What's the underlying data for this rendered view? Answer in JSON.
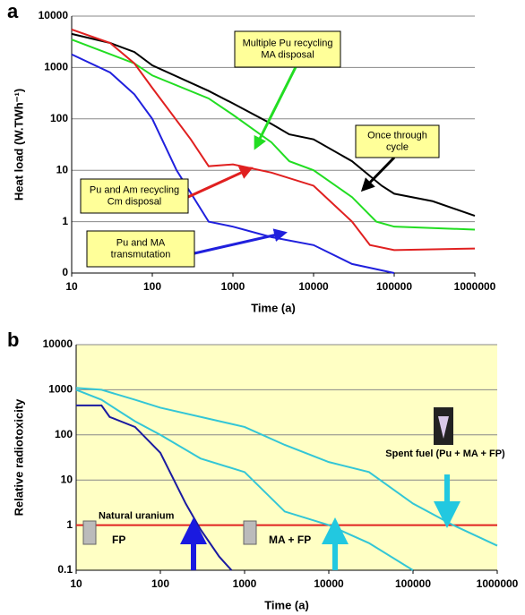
{
  "chart_data": [
    {
      "type": "line",
      "panel": "a",
      "x_label": "Time (a)",
      "y_label": "Heat load (W.TWh⁻¹)",
      "xlim": [
        10,
        1000000
      ],
      "ylim": [
        0.1,
        10000
      ],
      "log_x": true,
      "log_y": true,
      "grid": true,
      "xticks": [
        10,
        100,
        1000,
        10000,
        100000,
        1000000
      ],
      "yticks": [
        {
          "value": 0.1,
          "label": "0"
        },
        1,
        10,
        100,
        1000,
        10000
      ],
      "series": [
        {
          "color": "#000000",
          "x": [
            10,
            30,
            60,
            100,
            500,
            1000,
            3000,
            5000,
            10000,
            30000,
            70000,
            100000,
            300000,
            1000000
          ],
          "values": [
            4500,
            3000,
            2000,
            1100,
            350,
            200,
            80,
            50,
            40,
            15,
            5,
            3.5,
            2.5,
            1.3
          ]
        },
        {
          "color": "#22dd22",
          "x": [
            10,
            60,
            100,
            500,
            1000,
            3000,
            5000,
            10000,
            30000,
            60000,
            100000,
            1000000
          ],
          "values": [
            3500,
            1200,
            700,
            250,
            120,
            35,
            15,
            10,
            3,
            1,
            0.8,
            0.7
          ]
        },
        {
          "color": "#e02020",
          "x": [
            10,
            30,
            60,
            100,
            300,
            500,
            1000,
            3000,
            10000,
            30000,
            50000,
            100000,
            1000000
          ],
          "values": [
            5500,
            3000,
            1200,
            400,
            40,
            12,
            13,
            9,
            5,
            1,
            0.35,
            0.28,
            0.3
          ]
        },
        {
          "color": "#2020dd",
          "x": [
            10,
            30,
            60,
            100,
            200,
            500,
            1000,
            3000,
            10000,
            30000,
            100000
          ],
          "values": [
            1800,
            800,
            300,
            100,
            10,
            1,
            0.8,
            0.5,
            0.35,
            0.15,
            0.1
          ]
        }
      ],
      "annotations": [
        {
          "lines": [
            "Multiple Pu recycling",
            "MA disposal"
          ]
        },
        {
          "lines": [
            "Once through",
            "cycle"
          ]
        },
        {
          "lines": [
            "Pu and Am recycling",
            "Cm disposal"
          ]
        },
        {
          "lines": [
            "Pu and MA",
            "transmutation"
          ]
        }
      ]
    },
    {
      "type": "line",
      "panel": "b",
      "x_label": "Time (a)",
      "y_label": "Relative radiotoxicity",
      "xlim": [
        10,
        1000000
      ],
      "ylim": [
        0.1,
        10000
      ],
      "log_x": true,
      "log_y": true,
      "grid": true,
      "xticks": [
        10,
        100,
        1000,
        10000,
        100000,
        1000000
      ],
      "yticks": [
        0.1,
        1,
        10,
        100,
        1000,
        10000
      ],
      "series": [
        {
          "name": "FP",
          "color": "#1a1aa0",
          "x": [
            10,
            20,
            25,
            50,
            100,
            200,
            300,
            500,
            700
          ],
          "values": [
            450,
            450,
            250,
            150,
            40,
            3,
            0.8,
            0.2,
            0.1
          ]
        },
        {
          "name": "MA + FP",
          "color": "#33c6d6",
          "x": [
            10,
            20,
            50,
            100,
            300,
            1000,
            3000,
            10000,
            30000,
            100000
          ],
          "values": [
            1000,
            600,
            200,
            100,
            30,
            15,
            2,
            1,
            0.4,
            0.1
          ]
        },
        {
          "name": "Spent fuel (Pu + MA + FP)",
          "color": "#33c6d6",
          "x": [
            10,
            20,
            50,
            100,
            1000,
            3000,
            10000,
            30000,
            100000,
            300000,
            1000000
          ],
          "values": [
            1100,
            1000,
            600,
            400,
            150,
            60,
            25,
            15,
            3,
            1,
            0.35
          ]
        }
      ],
      "hline": {
        "value": 1,
        "label": "Natural uranium",
        "color": "#e02020"
      }
    }
  ]
}
